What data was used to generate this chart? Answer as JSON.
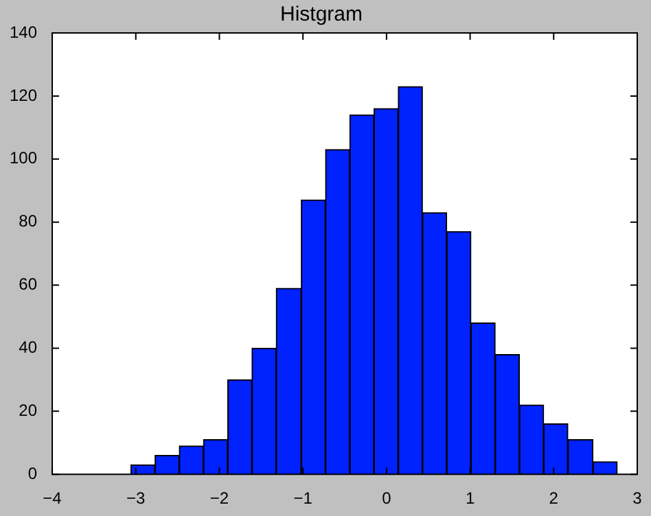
{
  "chart_data": {
    "type": "histogram",
    "title": "Histgram",
    "bins": [
      -3.06,
      -2.77,
      -2.48,
      -2.19,
      -1.9,
      -1.61,
      -1.32,
      -1.02,
      -0.73,
      -0.44,
      -0.15,
      0.14,
      0.43,
      0.72,
      1.01,
      1.3,
      1.59,
      1.88,
      2.17,
      2.47,
      2.76
    ],
    "values": [
      3,
      6,
      9,
      11,
      30,
      40,
      59,
      87,
      103,
      114,
      116,
      123,
      83,
      77,
      48,
      38,
      22,
      16,
      11,
      4
    ],
    "color": "#0022ff",
    "xlim": [
      -4,
      3
    ],
    "xticks": [
      -4,
      -3,
      -2,
      -1,
      0,
      1,
      2,
      3
    ],
    "ylim": [
      0,
      140
    ],
    "yticks": [
      0,
      20,
      40,
      60,
      80,
      100,
      120,
      140
    ]
  }
}
